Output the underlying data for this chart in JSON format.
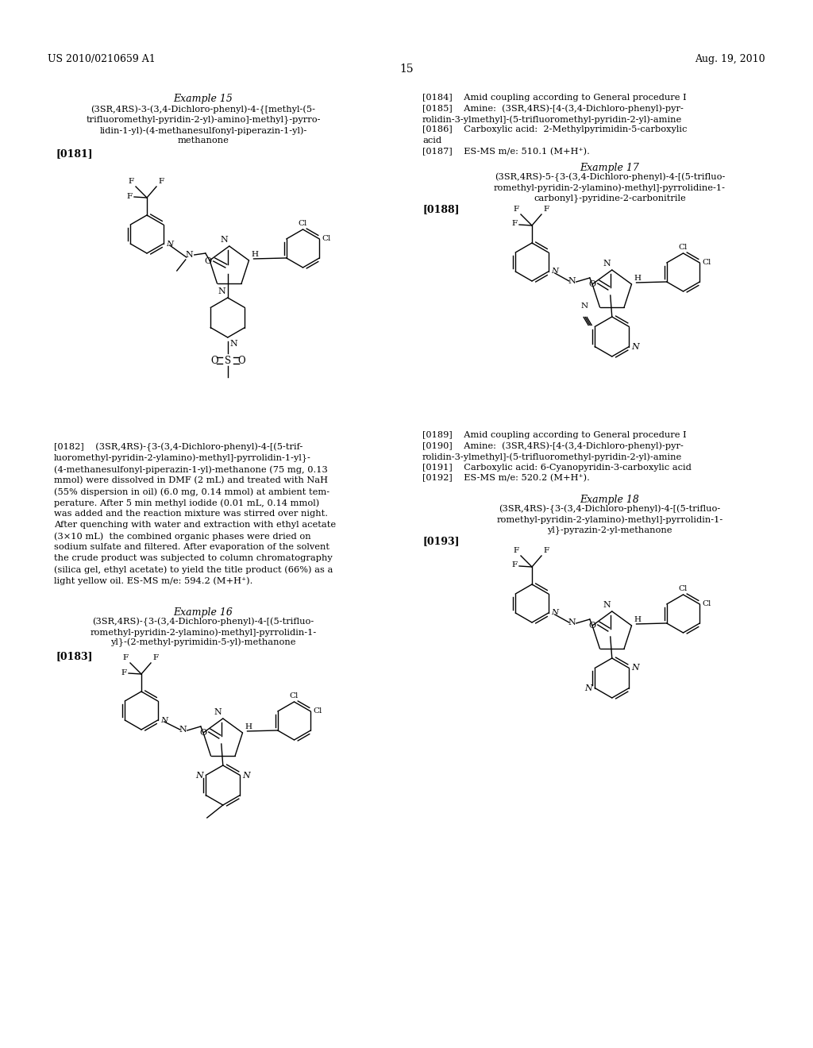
{
  "page_header_left": "US 2010/0210659 A1",
  "page_header_right": "Aug. 19, 2010",
  "page_number": "15",
  "bg": "#ffffff",
  "tc": "#000000",
  "ex15_title": "Example 15",
  "ex15_name_l1": "(3SR,4RS)-3-(3,4-Dichloro-phenyl)-4-{[methyl-(5-",
  "ex15_name_l2": "trifluoromethyl-pyridin-2-yl)-amino]-methyl}-pyrro-",
  "ex15_name_l3": "lidin-1-yl)-(4-methanesulfonyl-piperazin-1-yl)-",
  "ex15_name_l4": "methanone",
  "ex15_ref": "[0181]",
  "ex15_para_l1": "[0182]    (3SR,4RS)-{3-(3,4-Dichloro-phenyl)-4-[(5-trif-",
  "ex15_para_l2": "luoromethyl-pyridin-2-ylamino)-methyl]-pyrrolidin-1-yl}-",
  "ex15_para_l3": "(4-methanesulfonyl-piperazin-1-yl)-methanone (75 mg, 0.13",
  "ex15_para_l4": "mmol) were dissolved in DMF (2 mL) and treated with NaH",
  "ex15_para_l5": "(55% dispersion in oil) (6.0 mg, 0.14 mmol) at ambient tem-",
  "ex15_para_l6": "perature. After 5 min methyl iodide (0.01 mL, 0.14 mmol)",
  "ex15_para_l7": "was added and the reaction mixture was stirred over night.",
  "ex15_para_l8": "After quenching with water and extraction with ethyl acetate",
  "ex15_para_l9": "(3×10 mL)  the combined organic phases were dried on",
  "ex15_para_l10": "sodium sulfate and filtered. After evaporation of the solvent",
  "ex15_para_l11": "the crude product was subjected to column chromatography",
  "ex15_para_l12": "(silica gel, ethyl acetate) to yield the title product (66%) as a",
  "ex15_para_l13": "light yellow oil. ES-MS m/e: 594.2 (M+H⁺).",
  "ex16_title": "Example 16",
  "ex16_name_l1": "(3SR,4RS)-{3-(3,4-Dichloro-phenyl)-4-[(5-trifluo-",
  "ex16_name_l2": "romethyl-pyridin-2-ylamino)-methyl]-pyrrolidin-1-",
  "ex16_name_l3": "yl}-(2-methyl-pyrimidin-5-yl)-methanone",
  "ex16_ref": "[0183]",
  "rc_l1": "[0184]    Amid coupling according to General procedure I",
  "rc_l2": "[0185]    Amine:  (3SR,4RS)-[4-(3,4-Dichloro-phenyl)-pyr-",
  "rc_l3": "rolidin-3-ylmethyl]-(5-trifluoromethyl-pyridin-2-yl)-amine",
  "rc_l4": "[0186]    Carboxylic acid:  2-Methylpyrimidin-5-carboxylic",
  "rc_l5": "acid",
  "rc_l6": "[0187]    ES-MS m/e: 510.1 (M+H⁺).",
  "ex17_title": "Example 17",
  "ex17_name_l1": "(3SR,4RS)-5-{3-(3,4-Dichloro-phenyl)-4-[(5-trifluo-",
  "ex17_name_l2": "romethyl-pyridin-2-ylamino)-methyl]-pyrrolidine-1-",
  "ex17_name_l3": "carbonyl}-pyridine-2-carbonitrile",
  "ex17_ref": "[0188]",
  "rc2_l1": "[0189]    Amid coupling according to General procedure I",
  "rc2_l2": "[0190]    Amine:  (3SR,4RS)-[4-(3,4-Dichloro-phenyl)-pyr-",
  "rc2_l3": "rolidin-3-ylmethyl]-(5-trifluoromethyl-pyridin-2-yl)-amine",
  "rc2_l4": "[0191]    Carboxylic acid: 6-Cyanopyridin-3-carboxylic acid",
  "rc2_l5": "[0192]    ES-MS m/e: 520.2 (M+H⁺).",
  "ex18_title": "Example 18",
  "ex18_name_l1": "(3SR,4RS)-{3-(3,4-Dichloro-phenyl)-4-[(5-trifluo-",
  "ex18_name_l2": "romethyl-pyridin-2-ylamino)-methyl]-pyrrolidin-1-",
  "ex18_name_l3": "yl}-pyrazin-2-yl-methanone",
  "ex18_ref": "[0193]"
}
